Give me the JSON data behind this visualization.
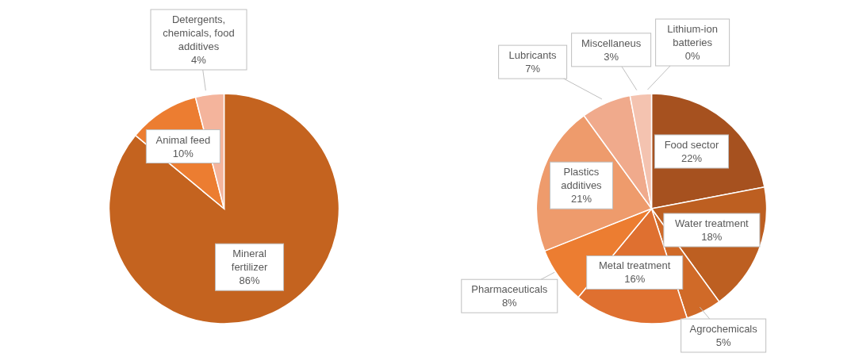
{
  "chart_data": [
    {
      "type": "pie",
      "categories": [
        "Mineral fertilizer",
        "Animal feed",
        "Detergents, chemicals, food additives"
      ],
      "values": [
        86,
        10,
        4
      ],
      "value_labels": [
        "86%",
        "10%",
        "4%"
      ],
      "colors": [
        "#c4631f",
        "#ec7d31",
        "#f4b49c"
      ]
    },
    {
      "type": "pie",
      "categories": [
        "Food sector",
        "Water treatment",
        "Agrochemicals",
        "Metal treatment",
        "Pharmaceuticals",
        "Plastics additives",
        "Lubricants",
        "Miscellaneus",
        "Lithium-ion batteries"
      ],
      "values": [
        22,
        18,
        5,
        16,
        8,
        21,
        7,
        3,
        0
      ],
      "value_labels": [
        "22%",
        "18%",
        "5%",
        "16%",
        "8%",
        "21%",
        "7%",
        "3%",
        "0%"
      ],
      "colors": [
        "#a6511f",
        "#bd5f21",
        "#d06a28",
        "#df7030",
        "#ec7d31",
        "#ee9b6c",
        "#f0aa8c",
        "#f4c3b0",
        "#f7d4c6"
      ]
    }
  ]
}
